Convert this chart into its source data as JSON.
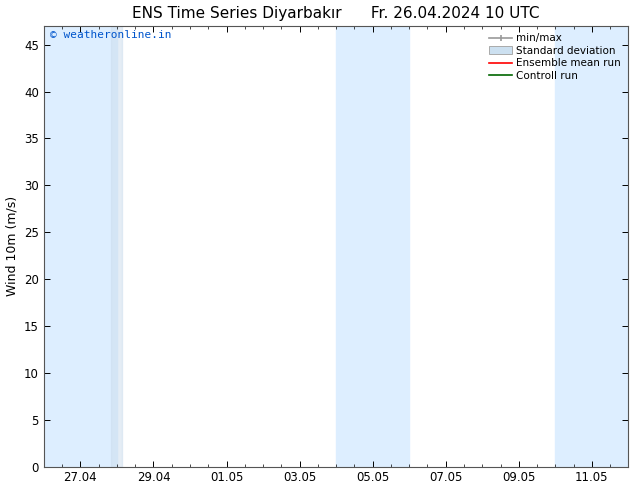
{
  "title": "ENS Time Series Diyarbakır      Fr. 26.04.2024 10 UTC",
  "ylabel": "Wind 10m (m/s)",
  "watermark": "© weatheronline.in",
  "watermark_color": "#0055cc",
  "ylim": [
    0,
    47
  ],
  "yticks": [
    0,
    5,
    10,
    15,
    20,
    25,
    30,
    35,
    40,
    45
  ],
  "xtick_labels": [
    "27.04",
    "29.04",
    "01.05",
    "03.05",
    "05.05",
    "07.05",
    "09.05",
    "11.05"
  ],
  "xmin": 0,
  "xmax": 336,
  "shaded_color": "#ddeeff",
  "background_color": "#ffffff",
  "legend_minmax_color": "#999999",
  "legend_stddev_color": "#cce0f0",
  "legend_ensemble_color": "#ff0000",
  "legend_control_color": "#006600",
  "title_fontsize": 11,
  "axis_fontsize": 9,
  "tick_fontsize": 8.5,
  "watermark_fontsize": 8
}
